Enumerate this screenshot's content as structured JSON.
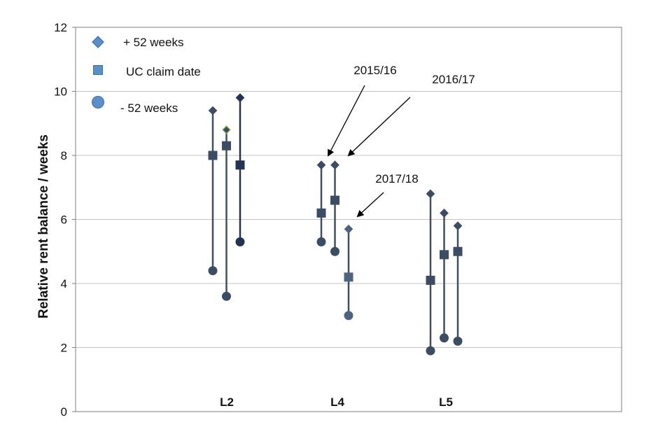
{
  "chart_data": {
    "type": "scatter",
    "ylabel": "Relative rent balance / weeks",
    "ylim": [
      0,
      12
    ],
    "yticks": [
      0,
      2,
      4,
      6,
      8,
      10,
      12
    ],
    "grid": "horizontal",
    "categories": [
      "L2",
      "L4",
      "L5"
    ],
    "periods": [
      "2015/16",
      "2016/17",
      "2017/18"
    ],
    "legend": {
      "placement": "top-left",
      "entries": [
        {
          "key": "plus52",
          "label": "+ 52 weeks",
          "marker": "diamond"
        },
        {
          "key": "claim",
          "label": "UC claim date",
          "marker": "square"
        },
        {
          "key": "minus52",
          "label": "- 52 weeks",
          "marker": "circle"
        }
      ]
    },
    "groups": [
      {
        "category": "L2",
        "points": [
          {
            "period": "2015/16",
            "plus52": 9.4,
            "claim": 8.0,
            "minus52": 4.4
          },
          {
            "period": "2016/17",
            "plus52": 8.8,
            "claim": 8.3,
            "minus52": 3.6
          },
          {
            "period": "2017/18",
            "plus52": 9.8,
            "claim": 7.7,
            "minus52": 5.3
          }
        ]
      },
      {
        "category": "L4",
        "points": [
          {
            "period": "2015/16",
            "plus52": 7.7,
            "claim": 6.2,
            "minus52": 5.3
          },
          {
            "period": "2016/17",
            "plus52": 7.7,
            "claim": 6.6,
            "minus52": 5.0
          },
          {
            "period": "2017/18",
            "plus52": 5.7,
            "claim": 4.2,
            "minus52": 3.0
          }
        ]
      },
      {
        "category": "L5",
        "points": [
          {
            "period": "2015/16",
            "plus52": 6.8,
            "claim": 4.1,
            "minus52": 1.9
          },
          {
            "period": "2016/17",
            "plus52": 6.2,
            "claim": 4.9,
            "minus52": 2.3
          },
          {
            "period": "2017/18",
            "plus52": 5.8,
            "claim": 5.0,
            "minus52": 2.2
          }
        ]
      }
    ],
    "annotations": [
      {
        "text": "2015/16",
        "target_category": "L4",
        "target_period": "2015/16"
      },
      {
        "text": "2016/17",
        "target_category": "L4",
        "target_period": "2016/17"
      },
      {
        "text": "2017/18",
        "target_category": "L4",
        "target_period": "2017/18"
      }
    ],
    "colors": {
      "line": "#3e5066",
      "marker_dark": "#3c4d63",
      "marker_navy": "#233354",
      "marker_light": "#4e6380",
      "grid": "#c4c4c4",
      "legend_marker": "#5b8fc9",
      "legend_marker_stroke": "#3a6fa8",
      "highlight_stroke": "#9bbb59"
    }
  }
}
